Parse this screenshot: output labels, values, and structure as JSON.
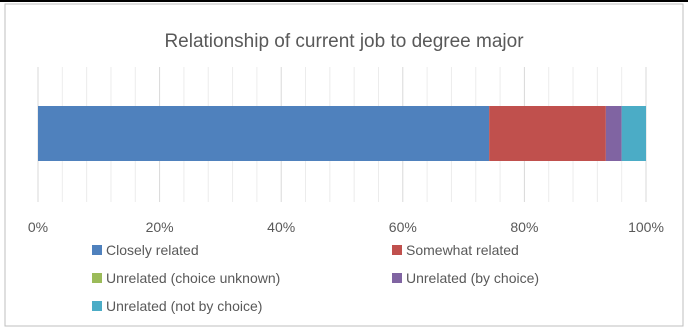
{
  "chart_data": {
    "type": "bar",
    "orientation": "horizontal",
    "stacked": true,
    "percent_scale": true,
    "title": "Relationship of current job to degree major",
    "xlabel": "",
    "ylabel": "",
    "xlim": [
      0,
      100
    ],
    "x_ticks": [
      "0%",
      "20%",
      "40%",
      "60%",
      "80%",
      "100%"
    ],
    "grid": true,
    "legend_position": "bottom",
    "categories": [
      ""
    ],
    "series": [
      {
        "name": "Closely related",
        "values": [
          74.2
        ],
        "color": "#4f81bd"
      },
      {
        "name": "Somewhat related",
        "values": [
          19.2
        ],
        "color": "#c0504d"
      },
      {
        "name": "Unrelated (choice unknown)",
        "values": [
          0.0
        ],
        "color": "#9bbb59"
      },
      {
        "name": "Unrelated (by choice)",
        "values": [
          2.6
        ],
        "color": "#8064a2"
      },
      {
        "name": "Unrelated (not by choice)",
        "values": [
          4.0
        ],
        "color": "#4bacc6"
      }
    ]
  }
}
